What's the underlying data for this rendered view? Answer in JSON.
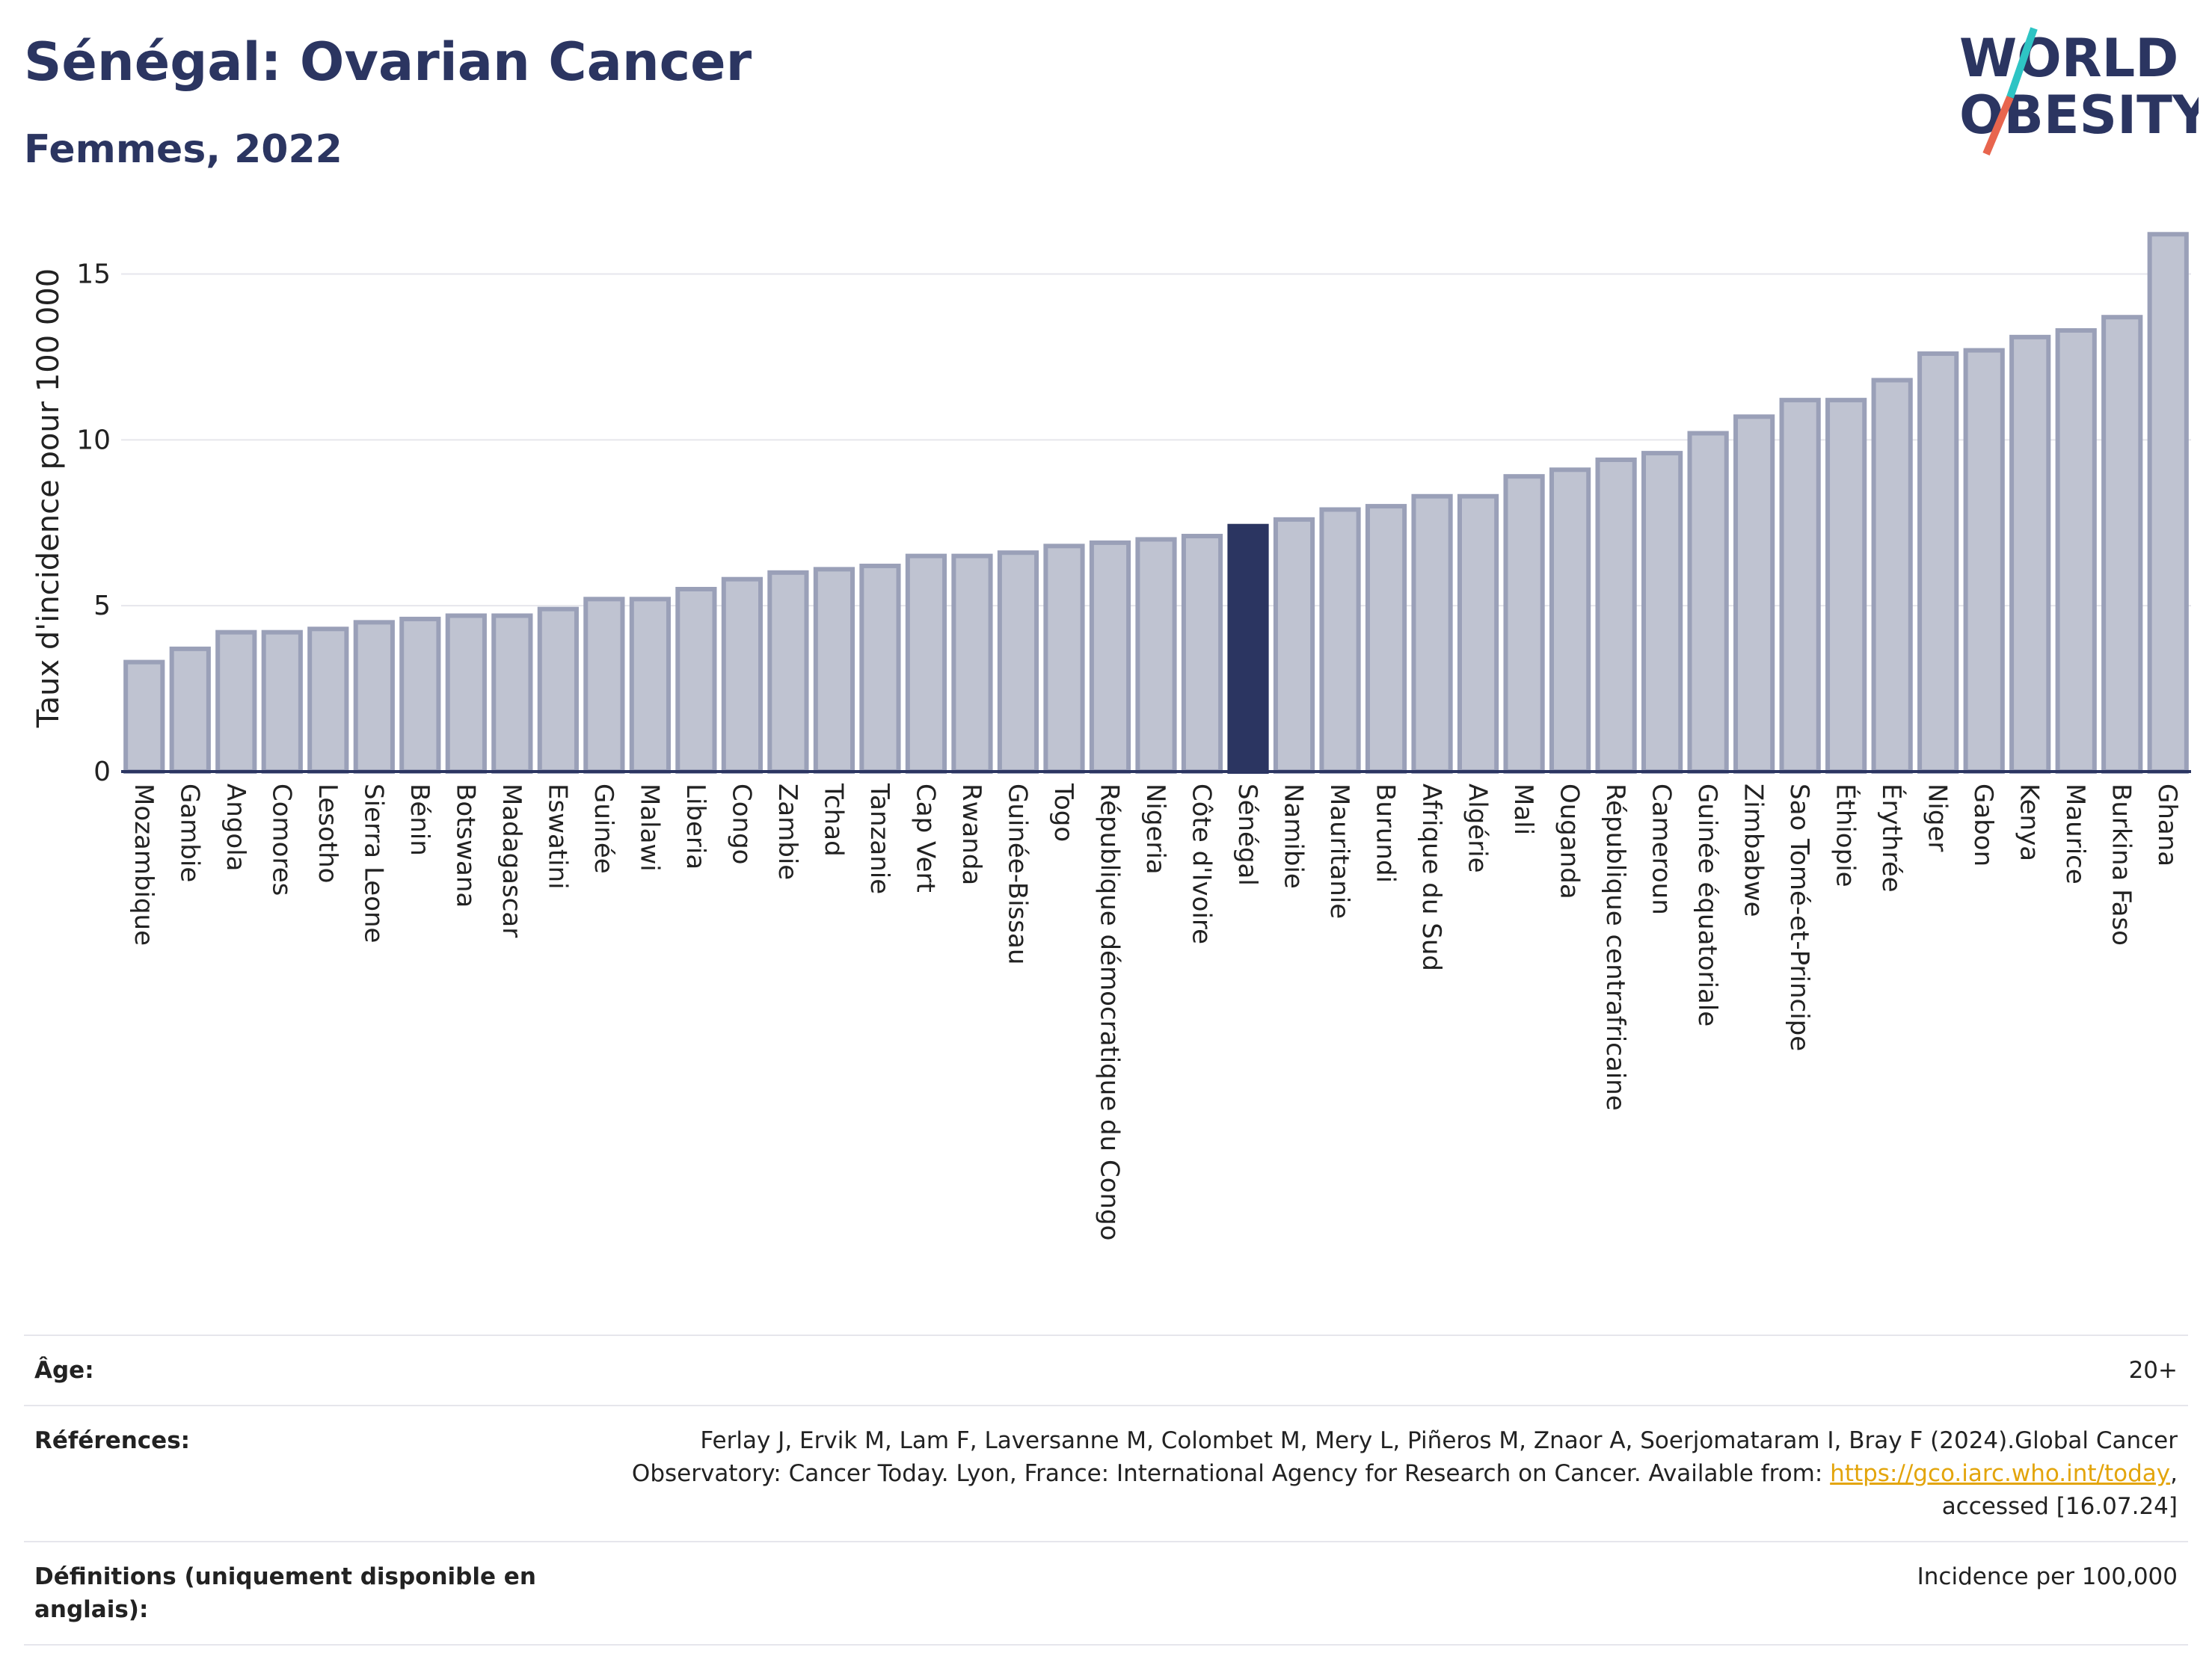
{
  "header": {
    "title": "Sénégal: Ovarian Cancer",
    "subtitle": "Femmes, 2022"
  },
  "logo": {
    "line1": "WORLD",
    "line2": "OBESITY",
    "accent_colors": [
      "#2ec4c4",
      "#e8654e"
    ]
  },
  "chart_data": {
    "type": "bar",
    "ylabel": "Taux d'incidence pour 100 000",
    "ylim": [
      0,
      16.5
    ],
    "yticks": [
      0,
      5,
      10,
      15
    ],
    "highlight": "Sénégal",
    "colors": {
      "bar": "#bfc3d1",
      "bar_border": "#9aa0b8",
      "highlight": "#2b3561",
      "grid": "#e6e6ec",
      "axis": "#2b3561"
    },
    "categories": [
      "Mozambique",
      "Gambie",
      "Angola",
      "Comores",
      "Lesotho",
      "Sierra Leone",
      "Bénin",
      "Botswana",
      "Madagascar",
      "Eswatini",
      "Guinée",
      "Malawi",
      "Liberia",
      "Congo",
      "Zambie",
      "Tchad",
      "Tanzanie",
      "Cap Vert",
      "Rwanda",
      "Guinée-Bissau",
      "Togo",
      "République démocratique du Congo",
      "Nigeria",
      "Côte d'Ivoire",
      "Sénégal",
      "Namibie",
      "Mauritanie",
      "Burundi",
      "Afrique du Sud",
      "Algérie",
      "Mali",
      "Ouganda",
      "République centrafricaine",
      "Cameroun",
      "Guinée équatoriale",
      "Zimbabwe",
      "Sao Tomé-et-Principe",
      "Éthiopie",
      "Érythrée",
      "Niger",
      "Gabon",
      "Kenya",
      "Maurice",
      "Burkina Faso",
      "Ghana"
    ],
    "values": [
      3.3,
      3.7,
      4.2,
      4.2,
      4.3,
      4.5,
      4.6,
      4.7,
      4.7,
      4.9,
      5.2,
      5.2,
      5.5,
      5.8,
      6.0,
      6.1,
      6.2,
      6.5,
      6.5,
      6.6,
      6.8,
      6.9,
      7.0,
      7.1,
      7.4,
      7.6,
      7.9,
      8.0,
      8.3,
      8.3,
      8.9,
      9.1,
      9.4,
      9.6,
      10.2,
      10.7,
      11.2,
      11.2,
      11.8,
      12.6,
      12.7,
      13.1,
      13.3,
      13.7,
      16.2
    ]
  },
  "footer": {
    "age_label": "Âge:",
    "age_value": "20+",
    "refs_label": "Références:",
    "refs_text_1": "Ferlay J, Ervik M, Lam F, Laversanne M, Colombet M, Mery L, Piñeros M, Znaor A, Soerjomataram I, Bray F (2024).Global Cancer Observatory: Cancer Today. Lyon, France: International Agency for Research on Cancer. Available from: ",
    "refs_link": "https://gco.iarc.who.int/today",
    "refs_text_2": ", accessed [16.07.24]",
    "defs_label": "Définitions (uniquement disponible en anglais):",
    "defs_value": "Incidence per 100,000"
  }
}
